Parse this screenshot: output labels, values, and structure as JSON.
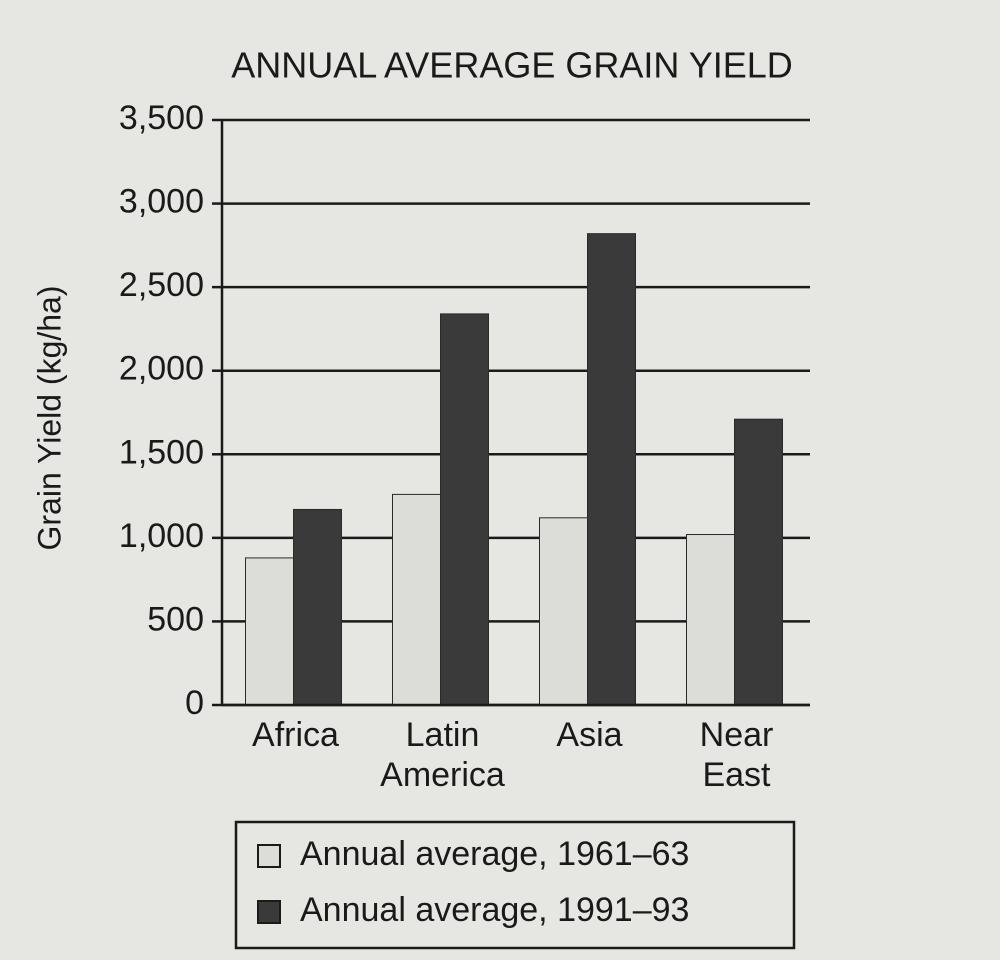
{
  "chart_data": {
    "type": "bar",
    "title": "ANNUAL AVERAGE GRAIN YIELD",
    "y_label": "Grain Yield (kg/ha)",
    "categories": [
      "Africa",
      "Latin America",
      "Asia",
      "Near East"
    ],
    "series": [
      {
        "name": "Annual average, 1961–63",
        "color": "#dcdcd8",
        "values": [
          880,
          1260,
          1120,
          1020
        ]
      },
      {
        "name": "Annual average, 1991–93",
        "color": "#3a3a3a",
        "values": [
          1170,
          2340,
          2820,
          1710
        ]
      }
    ],
    "ylim": [
      0,
      3500
    ],
    "yticks": [
      0,
      500,
      {
        "value": 1000,
        "label": "1,000"
      },
      {
        "value": 1500,
        "label": "1,500"
      },
      {
        "value": 2000,
        "label": "2,000"
      },
      {
        "value": 2500,
        "label": "2,500"
      },
      {
        "value": 3000,
        "label": "3,000"
      },
      {
        "value": 3500,
        "label": "3,500"
      }
    ],
    "grid": true
  }
}
